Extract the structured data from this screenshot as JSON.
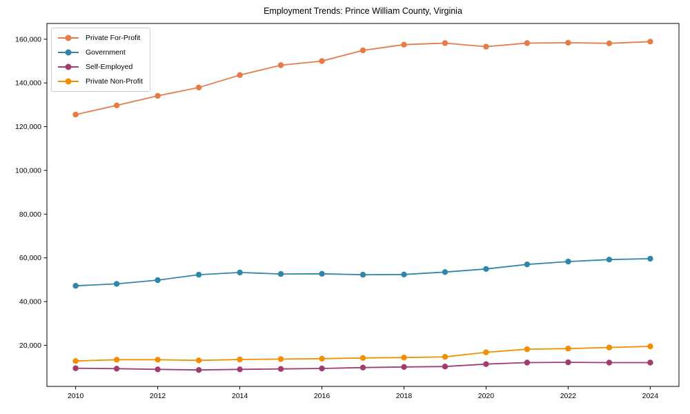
{
  "chart_data": {
    "type": "line",
    "title": "Employment Trends: Prince William County, Virginia",
    "x": [
      2010,
      2011,
      2012,
      2013,
      2014,
      2015,
      2016,
      2017,
      2018,
      2019,
      2020,
      2021,
      2022,
      2023,
      2024
    ],
    "series": [
      {
        "name": "Private For-Profit",
        "color": "#E87A46",
        "values": [
          125500,
          129700,
          134100,
          137900,
          143600,
          148100,
          150000,
          154900,
          157500,
          158200,
          156600,
          158200,
          158400,
          158100,
          158900
        ]
      },
      {
        "name": "Government",
        "color": "#2E86AB",
        "values": [
          47200,
          48100,
          49800,
          52300,
          53300,
          52600,
          52700,
          52300,
          52400,
          53500,
          54900,
          57000,
          58300,
          59200,
          59600
        ]
      },
      {
        "name": "Self-Employed",
        "color": "#A23B72",
        "values": [
          9500,
          9300,
          9000,
          8700,
          9000,
          9200,
          9400,
          9800,
          10100,
          10300,
          11400,
          12100,
          12200,
          12100,
          12100
        ]
      },
      {
        "name": "Private Non-Profit",
        "color": "#F18F01",
        "values": [
          12800,
          13400,
          13400,
          13100,
          13500,
          13700,
          13900,
          14200,
          14400,
          14700,
          16800,
          18200,
          18500,
          19000,
          19500
        ]
      }
    ],
    "xlabel": "",
    "ylabel": "",
    "xticks": [
      2010,
      2012,
      2014,
      2016,
      2018,
      2020,
      2022,
      2024
    ],
    "yticks": [
      20000,
      40000,
      60000,
      80000,
      100000,
      120000,
      140000,
      160000
    ],
    "xlim": [
      2009.3,
      2024.7
    ],
    "ylim": [
      1200,
      167200
    ],
    "grid": false,
    "legend_position": "upper left",
    "frame": "full-box",
    "axis_color": "#000000",
    "tick_label_color": "#000000"
  }
}
